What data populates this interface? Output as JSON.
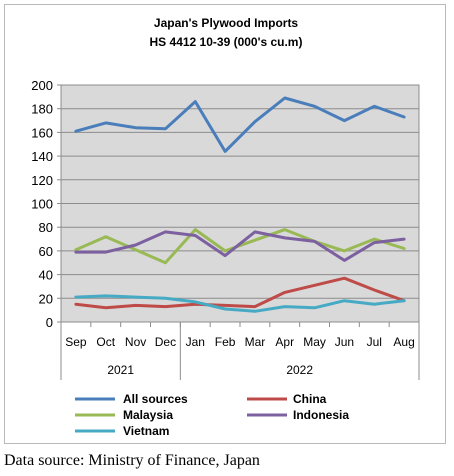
{
  "chart_data": {
    "type": "line",
    "title": "Japan's Plywood Imports",
    "subtitle": "HS 4412 10-39  (000's cu.m)",
    "categories": [
      "Sep",
      "Oct",
      "Nov",
      "Dec",
      "Jan",
      "Feb",
      "Mar",
      "Apr",
      "May",
      "Jun",
      "Jul",
      "Aug"
    ],
    "year_groups": [
      {
        "label": "2021",
        "from": 0,
        "to": 3
      },
      {
        "label": "2022",
        "from": 4,
        "to": 11
      }
    ],
    "ylim": [
      0,
      200
    ],
    "yticks": [
      0,
      20,
      40,
      60,
      80,
      100,
      120,
      140,
      160,
      180,
      200
    ],
    "grid": true,
    "legend_position": "bottom",
    "series": [
      {
        "name": "All sources",
        "color": "#4a7ebb",
        "values": [
          161,
          168,
          164,
          163,
          186,
          144,
          169,
          189,
          182,
          170,
          182,
          173
        ]
      },
      {
        "name": "China",
        "color": "#be4b48",
        "values": [
          15,
          12,
          14,
          13,
          15,
          14,
          13,
          25,
          31,
          37,
          27,
          18
        ]
      },
      {
        "name": "Malaysia",
        "color": "#98b954",
        "values": [
          61,
          72,
          61,
          50,
          78,
          60,
          69,
          78,
          68,
          60,
          70,
          62
        ]
      },
      {
        "name": "Indonesia",
        "color": "#7d60a0",
        "values": [
          59,
          59,
          65,
          76,
          73,
          56,
          76,
          71,
          68,
          52,
          67,
          70
        ]
      },
      {
        "name": "Vietnam",
        "color": "#46aac5",
        "values": [
          21,
          22,
          21,
          20,
          17,
          11,
          9,
          13,
          12,
          18,
          15,
          18
        ]
      }
    ]
  },
  "footer": {
    "source": "Data source: Ministry of Finance, Japan"
  }
}
